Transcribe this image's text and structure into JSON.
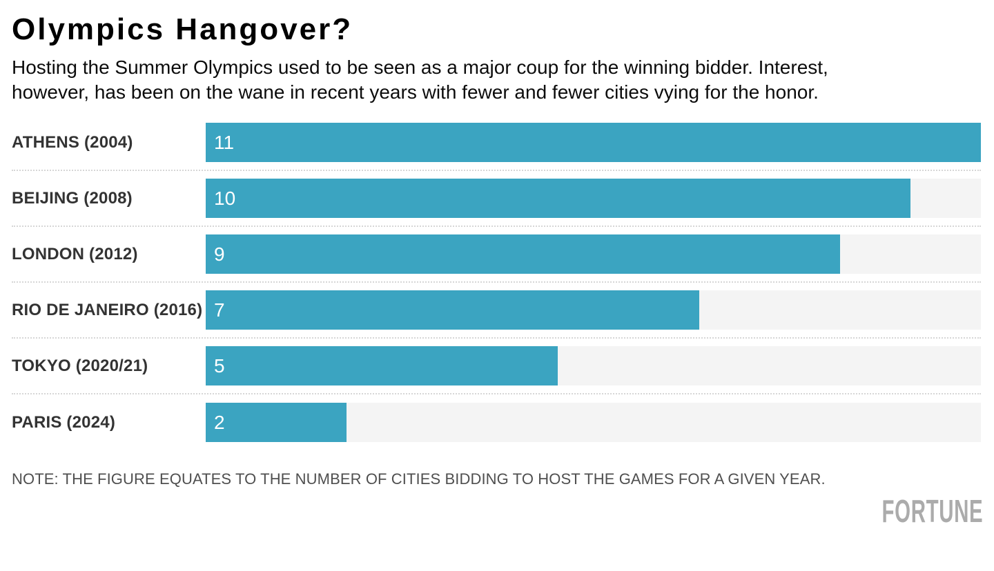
{
  "header": {
    "title": "Olympics Hangover?",
    "subtitle_line1": "Hosting the Summer Olympics used to be seen as a major coup for the winning bidder. Interest,",
    "subtitle_line2": "however, has been on the wane in recent years with fewer and fewer cities vying for the honor."
  },
  "chart_data": {
    "type": "bar",
    "orientation": "horizontal",
    "categories": [
      "ATHENS (2004)",
      "BEIJING (2008)",
      "LONDON (2012)",
      "RIO DE JANEIRO (2016)",
      "TOKYO (2020/21)",
      "PARIS (2024)"
    ],
    "values": [
      11,
      10,
      9,
      7,
      5,
      2
    ],
    "value_labels_inside_bar": true,
    "xlim": [
      0,
      11
    ],
    "grid": false,
    "legend": false,
    "axis_ticks_visible": false,
    "bar_color": "#3BA4C1",
    "track_color": "#F4F4F4",
    "value_label_color": "#FFFFFF",
    "separator_style": "dotted"
  },
  "footer": {
    "note": "NOTE: THE FIGURE EQUATES TO THE NUMBER OF CITIES BIDDING TO HOST THE GAMES FOR A GIVEN YEAR.",
    "brand": "FORTUNE",
    "brand_color": "#ABABAB"
  }
}
